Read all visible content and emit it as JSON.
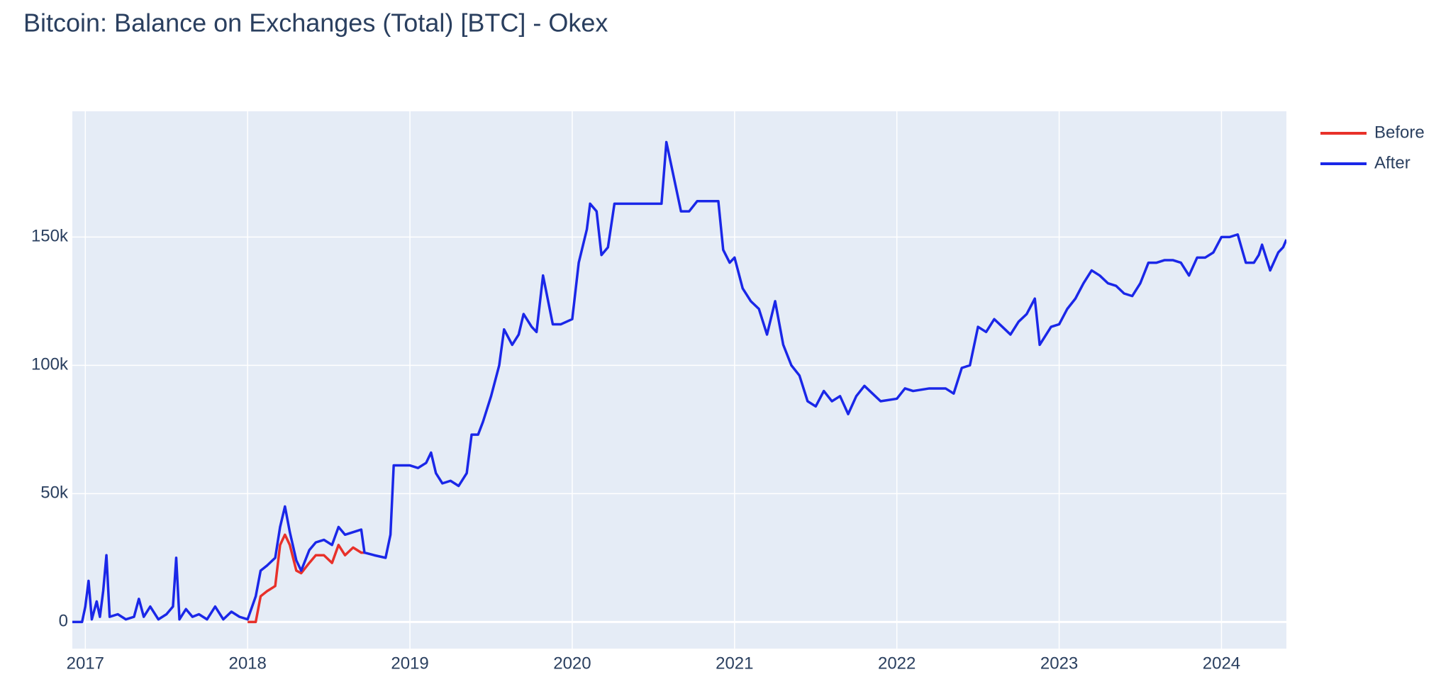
{
  "chart_data": {
    "type": "line",
    "title": "Bitcoin: Balance on Exchanges (Total) [BTC] - Okex",
    "xlim": [
      2016.92,
      2024.4
    ],
    "xticks": [
      2017,
      2018,
      2019,
      2020,
      2021,
      2022,
      2023,
      2024
    ],
    "ylim": [
      -10400,
      199000
    ],
    "yticks": [
      {
        "value": 0,
        "label": "0"
      },
      {
        "value": 50000,
        "label": "50k"
      },
      {
        "value": 100000,
        "label": "100k"
      },
      {
        "value": 150000,
        "label": "150k"
      }
    ],
    "grid": true,
    "legend": "right",
    "series": [
      {
        "name": "Before",
        "color": "#e8312a",
        "x": [
          2018.0,
          2018.05,
          2018.08,
          2018.12,
          2018.17,
          2018.2,
          2018.23,
          2018.26,
          2018.3,
          2018.33,
          2018.38,
          2018.42,
          2018.47,
          2018.52,
          2018.56,
          2018.6,
          2018.65,
          2018.7,
          2018.72
        ],
        "values": [
          0,
          0,
          10000,
          12000,
          14000,
          30000,
          34000,
          30000,
          20000,
          19000,
          23000,
          26000,
          26000,
          23000,
          30000,
          26000,
          29000,
          27000,
          27000
        ]
      },
      {
        "name": "After",
        "color": "#1a27e8",
        "x": [
          2016.92,
          2016.98,
          2017.0,
          2017.02,
          2017.04,
          2017.07,
          2017.09,
          2017.11,
          2017.13,
          2017.15,
          2017.2,
          2017.25,
          2017.3,
          2017.33,
          2017.36,
          2017.4,
          2017.45,
          2017.5,
          2017.54,
          2017.56,
          2017.58,
          2017.62,
          2017.66,
          2017.7,
          2017.75,
          2017.8,
          2017.85,
          2017.9,
          2017.95,
          2018.0,
          2018.05,
          2018.08,
          2018.12,
          2018.17,
          2018.2,
          2018.23,
          2018.26,
          2018.3,
          2018.33,
          2018.38,
          2018.42,
          2018.47,
          2018.52,
          2018.56,
          2018.6,
          2018.65,
          2018.7,
          2018.72,
          2018.78,
          2018.85,
          2018.88,
          2018.9,
          2018.95,
          2019.0,
          2019.05,
          2019.1,
          2019.13,
          2019.16,
          2019.2,
          2019.25,
          2019.3,
          2019.35,
          2019.38,
          2019.42,
          2019.45,
          2019.5,
          2019.55,
          2019.58,
          2019.63,
          2019.67,
          2019.7,
          2019.75,
          2019.78,
          2019.82,
          2019.88,
          2019.93,
          2020.0,
          2020.04,
          2020.09,
          2020.11,
          2020.15,
          2020.18,
          2020.22,
          2020.26,
          2020.35,
          2020.45,
          2020.55,
          2020.58,
          2020.62,
          2020.67,
          2020.72,
          2020.77,
          2020.85,
          2020.9,
          2020.93,
          2020.97,
          2021.0,
          2021.05,
          2021.1,
          2021.15,
          2021.2,
          2021.25,
          2021.3,
          2021.35,
          2021.4,
          2021.45,
          2021.5,
          2021.55,
          2021.6,
          2021.65,
          2021.7,
          2021.75,
          2021.8,
          2021.85,
          2021.9,
          2022.0,
          2022.05,
          2022.1,
          2022.2,
          2022.3,
          2022.35,
          2022.4,
          2022.45,
          2022.5,
          2022.55,
          2022.6,
          2022.65,
          2022.7,
          2022.75,
          2022.8,
          2022.85,
          2022.88,
          2022.95,
          2023.0,
          2023.05,
          2023.1,
          2023.15,
          2023.2,
          2023.25,
          2023.3,
          2023.35,
          2023.4,
          2023.45,
          2023.5,
          2023.55,
          2023.6,
          2023.65,
          2023.7,
          2023.75,
          2023.8,
          2023.85,
          2023.9,
          2023.95,
          2024.0,
          2024.05,
          2024.1,
          2024.15,
          2024.2,
          2024.23,
          2024.25,
          2024.3,
          2024.35,
          2024.38,
          2024.4
        ],
        "values": [
          0,
          0,
          6000,
          16000,
          1000,
          8000,
          2000,
          12000,
          26000,
          2000,
          3000,
          1000,
          2000,
          9000,
          2000,
          6000,
          1000,
          3000,
          6000,
          25000,
          1000,
          5000,
          2000,
          3000,
          1000,
          6000,
          1000,
          4000,
          2000,
          1000,
          10000,
          20000,
          22000,
          25000,
          37000,
          45000,
          35000,
          24000,
          20000,
          28000,
          31000,
          32000,
          30000,
          37000,
          34000,
          35000,
          36000,
          27000,
          26000,
          25000,
          34000,
          61000,
          61000,
          61000,
          60000,
          62000,
          66000,
          58000,
          54000,
          55000,
          53000,
          58000,
          73000,
          73000,
          78000,
          88000,
          100000,
          114000,
          108000,
          112000,
          120000,
          115000,
          113000,
          135000,
          116000,
          116000,
          118000,
          140000,
          153000,
          163000,
          160000,
          143000,
          146000,
          163000,
          163000,
          163000,
          163000,
          187000,
          175000,
          160000,
          160000,
          164000,
          164000,
          164000,
          145000,
          140000,
          142000,
          130000,
          125000,
          122000,
          112000,
          125000,
          108000,
          100000,
          96000,
          86000,
          84000,
          90000,
          86000,
          88000,
          81000,
          88000,
          92000,
          89000,
          86000,
          87000,
          91000,
          90000,
          91000,
          91000,
          89000,
          99000,
          100000,
          115000,
          113000,
          118000,
          115000,
          112000,
          117000,
          120000,
          126000,
          108000,
          115000,
          116000,
          122000,
          126000,
          132000,
          137000,
          135000,
          132000,
          131000,
          128000,
          127000,
          132000,
          140000,
          140000,
          141000,
          141000,
          140000,
          135000,
          142000,
          142000,
          144000,
          150000,
          150000,
          151000,
          140000,
          140000,
          143000,
          147000,
          137000,
          144000,
          146000,
          149000
        ]
      }
    ]
  }
}
